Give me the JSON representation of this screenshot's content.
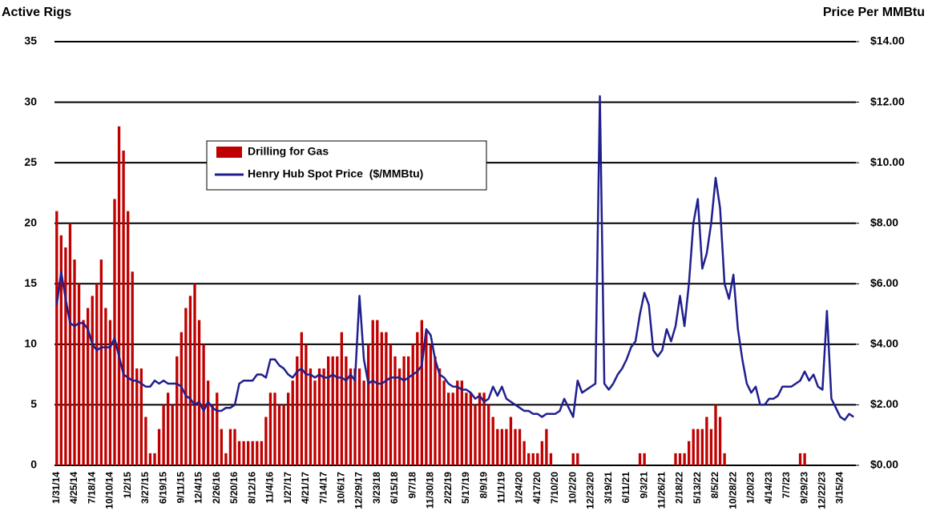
{
  "chart_data": {
    "type": "bar-line",
    "y_label": "Active Rigs",
    "y2_label": "Price Per MMBtu",
    "categories": [
      "1/31/14",
      null,
      null,
      null,
      "4/25/14",
      null,
      null,
      null,
      "7/18/14",
      null,
      null,
      null,
      "10/10/14",
      null,
      null,
      null,
      "1/2/15",
      null,
      null,
      null,
      "3/27/15",
      null,
      null,
      null,
      "6/19/15",
      null,
      null,
      null,
      "9/11/15",
      null,
      null,
      null,
      "12/4/15",
      null,
      null,
      null,
      "2/26/16",
      null,
      null,
      null,
      "5/20/16",
      null,
      null,
      null,
      "8/12/16",
      null,
      null,
      null,
      "11/4/16",
      null,
      null,
      null,
      "1/27/17",
      null,
      null,
      null,
      "4/21/17",
      null,
      null,
      null,
      "7/14/17",
      null,
      null,
      null,
      "10/6/17",
      null,
      null,
      null,
      "12/29/17",
      null,
      null,
      null,
      "3/23/18",
      null,
      null,
      null,
      "6/15/18",
      null,
      null,
      null,
      "9/7/18",
      null,
      null,
      null,
      "11/30/18",
      null,
      null,
      null,
      "2/22/19",
      null,
      null,
      null,
      "5/17/19",
      null,
      null,
      null,
      "8/9/19",
      null,
      null,
      null,
      "11/1/19",
      null,
      null,
      null,
      "1/24/20",
      null,
      null,
      null,
      "4/17/20",
      null,
      null,
      null,
      "7/10/20",
      null,
      null,
      null,
      "10/2/20",
      null,
      null,
      null,
      "12/23/20",
      null,
      null,
      null,
      "3/19/21",
      null,
      null,
      null,
      "6/11/21",
      null,
      null,
      null,
      "9/3/21",
      null,
      null,
      null,
      "11/26/21",
      null,
      null,
      null,
      "2/18/22",
      null,
      null,
      null,
      "5/13/22",
      null,
      null,
      null,
      "8/5/22",
      null,
      null,
      null,
      "10/28/22",
      null,
      null,
      null,
      "1/20/23",
      null,
      null,
      null,
      "4/14/23",
      null,
      null,
      null,
      "7/7/23",
      null,
      null,
      null,
      "9/29/23",
      null,
      null,
      null,
      "12/22/23",
      null,
      null,
      null,
      "3/15/24",
      null,
      null,
      null
    ],
    "series": [
      {
        "name": "Drilling for Gas",
        "type": "bar",
        "color": "#c00000",
        "values": [
          21,
          19,
          18,
          20,
          17,
          15,
          12,
          13,
          14,
          15,
          17,
          13,
          12,
          22,
          28,
          26,
          21,
          16,
          8,
          8,
          4,
          1,
          1,
          3,
          5,
          6,
          5,
          9,
          11,
          13,
          14,
          15,
          12,
          10,
          7,
          5,
          6,
          3,
          1,
          3,
          3,
          2,
          2,
          2,
          2,
          2,
          2,
          4,
          6,
          6,
          5,
          5,
          6,
          7,
          9,
          11,
          10,
          8,
          7,
          8,
          8,
          9,
          9,
          9,
          11,
          9,
          8,
          8,
          8,
          7,
          10,
          12,
          12,
          11,
          11,
          10,
          9,
          8,
          9,
          9,
          10,
          11,
          12,
          11,
          10,
          9,
          8,
          7,
          6,
          6,
          7,
          7,
          6,
          6,
          5,
          6,
          6,
          5,
          4,
          3,
          3,
          3,
          4,
          3,
          3,
          2,
          1,
          1,
          1,
          2,
          3,
          1,
          0,
          0,
          0,
          0,
          1,
          1,
          0,
          0,
          0,
          0,
          0,
          0,
          0,
          0,
          0,
          0,
          0,
          0,
          0,
          1,
          1,
          0,
          0,
          0,
          0,
          0,
          0,
          1,
          1,
          1,
          2,
          3,
          3,
          3,
          4,
          3,
          5,
          4,
          1,
          0,
          0,
          0,
          0,
          0,
          0,
          0,
          0,
          0,
          0,
          0,
          0,
          0,
          0,
          0,
          0,
          1,
          1,
          0,
          0,
          0,
          0,
          0,
          0,
          0,
          0,
          0,
          0,
          0
        ]
      },
      {
        "name": "Henry Hub Spot Price  ($/MMBtu)",
        "type": "line",
        "axis": "y2",
        "color": "#1f1f8f",
        "values": [
          5.3,
          6.4,
          5.5,
          4.7,
          4.6,
          4.7,
          4.7,
          4.5,
          4.0,
          3.8,
          3.9,
          3.9,
          3.9,
          4.2,
          3.6,
          3.0,
          2.9,
          2.8,
          2.8,
          2.7,
          2.6,
          2.6,
          2.8,
          2.7,
          2.8,
          2.7,
          2.7,
          2.7,
          2.6,
          2.3,
          2.2,
          2.0,
          2.1,
          1.8,
          2.1,
          1.9,
          1.8,
          1.8,
          1.9,
          1.9,
          2.0,
          2.7,
          2.8,
          2.8,
          2.8,
          3.0,
          3.0,
          2.9,
          3.5,
          3.5,
          3.3,
          3.2,
          3.0,
          2.9,
          3.1,
          3.2,
          3.0,
          3.0,
          2.9,
          3.0,
          2.9,
          2.9,
          3.0,
          2.9,
          2.9,
          2.8,
          3.0,
          2.8,
          5.6,
          3.5,
          2.7,
          2.8,
          2.7,
          2.7,
          2.8,
          2.9,
          2.9,
          2.9,
          2.8,
          2.9,
          3.0,
          3.1,
          3.3,
          4.5,
          4.3,
          3.5,
          3.0,
          2.9,
          2.7,
          2.6,
          2.6,
          2.5,
          2.5,
          2.4,
          2.2,
          2.3,
          2.1,
          2.2,
          2.6,
          2.3,
          2.6,
          2.2,
          2.1,
          2.0,
          1.9,
          1.8,
          1.8,
          1.7,
          1.7,
          1.6,
          1.7,
          1.7,
          1.7,
          1.8,
          2.2,
          1.9,
          1.6,
          2.8,
          2.4,
          2.5,
          2.6,
          2.7,
          12.2,
          2.7,
          2.5,
          2.7,
          3.0,
          3.2,
          3.5,
          3.9,
          4.1,
          5.0,
          5.7,
          5.3,
          3.8,
          3.6,
          3.8,
          4.5,
          4.1,
          4.6,
          5.6,
          4.6,
          6.0,
          8.0,
          8.8,
          6.5,
          7.0,
          8.0,
          9.5,
          8.5,
          6.0,
          5.5,
          6.3,
          4.5,
          3.5,
          2.7,
          2.4,
          2.6,
          2.0,
          2.0,
          2.2,
          2.2,
          2.3,
          2.6,
          2.6,
          2.6,
          2.7,
          2.8,
          3.1,
          2.8,
          3.0,
          2.6,
          2.5,
          5.1,
          2.2,
          1.9,
          1.6,
          1.5,
          1.7,
          1.6
        ]
      }
    ],
    "ylim": [
      0,
      35
    ],
    "yticks": [
      0,
      5,
      10,
      15,
      20,
      25,
      30,
      35
    ],
    "y2lim": [
      0,
      14
    ],
    "y2ticks": [
      {
        "value": 0,
        "label": "$0.00"
      },
      {
        "value": 2,
        "label": "$2.00"
      },
      {
        "value": 4,
        "label": "$4.00"
      },
      {
        "value": 6,
        "label": "$6.00"
      },
      {
        "value": 8,
        "label": "$8.00"
      },
      {
        "value": 10,
        "label": "$10.00"
      },
      {
        "value": 12,
        "label": "$12.00"
      },
      {
        "value": 14,
        "label": "$14.00"
      }
    ],
    "grid": true
  }
}
